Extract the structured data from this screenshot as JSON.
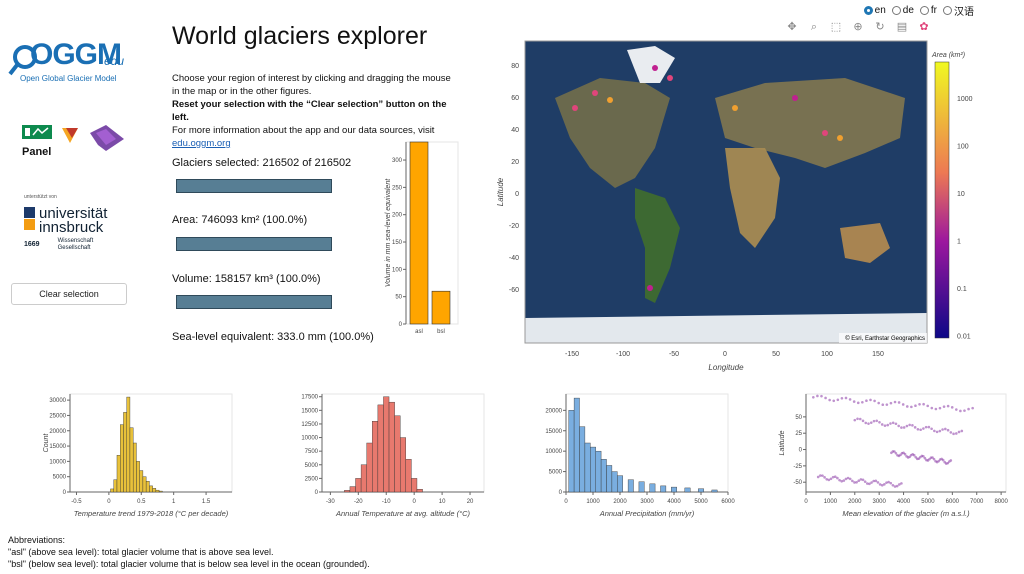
{
  "languages": [
    {
      "code": "en",
      "selected": true
    },
    {
      "code": "de",
      "selected": false
    },
    {
      "code": "fr",
      "selected": false
    },
    {
      "code": "汉语",
      "selected": false
    }
  ],
  "logos": {
    "oggm_text": "OGGM",
    "oggm_edu": "edu",
    "oggm_subtitle": "Open Global Glacier Model",
    "panel_text": "Panel",
    "uni_small": "unterstützt von",
    "uni_line1": "universität",
    "uni_line2": "innsbruck",
    "uni_year": "1669",
    "uni_wiss": "Wissenschaft",
    "uni_ges": "Gesellschaft"
  },
  "clear_button": "Clear selection",
  "title": "World glaciers explorer",
  "intro": {
    "line1": "Choose your region of interest by clicking and dragging the mouse in the map or in the other figures.",
    "line2": "Reset your selection with the “Clear selection” button on the left.",
    "line3": "For more information about the app and our data sources, visit",
    "link": "edu.oggm.org"
  },
  "stats": {
    "glaciers": "Glaciers selected: 216502 of 216502",
    "area": "Area: 746093 km² (100.0%)",
    "volume": "Volume: 158157 km³ (100.0%)",
    "sle": "Sea-level equivalent: 333.0 mm (100.0%)"
  },
  "sle_chart": {
    "type": "bar",
    "categories": [
      "asl",
      "bsl"
    ],
    "values": [
      333,
      60
    ],
    "ylabel": "Volume in mm sea-level equivalent",
    "ylim": [
      0,
      333
    ],
    "yticks": [
      0,
      50,
      100,
      150,
      200,
      250,
      300
    ],
    "color": "#ffa500"
  },
  "map": {
    "xlabel": "Longitude",
    "ylabel": "Latitude",
    "xticks": [
      "-150",
      "-100",
      "-50",
      "0",
      "50",
      "100",
      "150"
    ],
    "yticks": [
      "80",
      "60",
      "40",
      "20",
      "0",
      "-20",
      "-40",
      "-60"
    ],
    "attribution": "© Esri, Earthstar Geographics",
    "colorbar_title": "Area (km²)",
    "colorbar_ticks": [
      "1000",
      "100",
      "10",
      "1",
      "0.1",
      "0.01"
    ]
  },
  "toolbar_icons": [
    "pan-icon",
    "box-zoom-icon",
    "box-select-icon",
    "wheel-zoom-icon",
    "reset-icon",
    "hover-icon",
    "bokeh-logo-icon"
  ],
  "chart_data": [
    {
      "type": "bar",
      "title": "",
      "xlabel": "Temperature trend 1979-2018 (°C per decade)",
      "ylabel": "Count",
      "xticks": [
        "-0.5",
        "0",
        "0.5",
        "1",
        "1.5"
      ],
      "yticks": [
        "0",
        "5000",
        "10000",
        "15000",
        "20000",
        "25000",
        "30000"
      ],
      "ylim": [
        0,
        32000
      ],
      "color": "#e8c13a",
      "bins_x": [
        0.05,
        0.1,
        0.15,
        0.2,
        0.25,
        0.3,
        0.35,
        0.4,
        0.45,
        0.5,
        0.55,
        0.6,
        0.65,
        0.7,
        0.75,
        0.8
      ],
      "values": [
        1000,
        4000,
        12000,
        22000,
        26000,
        31000,
        21000,
        16000,
        10000,
        7000,
        5000,
        3500,
        2000,
        1200,
        600,
        300
      ]
    },
    {
      "type": "bar",
      "title": "",
      "xlabel": "Annual Temperature at avg. altitude (°C)",
      "ylabel": "",
      "xticks": [
        "-30",
        "-20",
        "-10",
        "0",
        "10",
        "20"
      ],
      "yticks": [
        "0",
        "2500",
        "5000",
        "7500",
        "10000",
        "12500",
        "15000",
        "17500"
      ],
      "ylim": [
        0,
        18000
      ],
      "color": "#e8796e",
      "bins_x": [
        -24,
        -22,
        -20,
        -18,
        -16,
        -14,
        -12,
        -10,
        -8,
        -6,
        -4,
        -2,
        0,
        2
      ],
      "values": [
        300,
        1000,
        2500,
        5000,
        9000,
        13000,
        16000,
        17500,
        16500,
        14000,
        10000,
        6000,
        2500,
        500
      ]
    },
    {
      "type": "bar",
      "title": "",
      "xlabel": "Annual Precipitation (mm/yr)",
      "ylabel": "",
      "xticks": [
        "0",
        "1000",
        "2000",
        "3000",
        "4000",
        "5000",
        "6000"
      ],
      "yticks": [
        "0",
        "5000",
        "10000",
        "15000",
        "20000"
      ],
      "ylim": [
        0,
        24000
      ],
      "color": "#7aaee0",
      "bins_x": [
        200,
        400,
        600,
        800,
        1000,
        1200,
        1400,
        1600,
        1800,
        2000,
        2400,
        2800,
        3200,
        3600,
        4000,
        4500,
        5000,
        5500
      ],
      "values": [
        20000,
        23000,
        16000,
        12000,
        11000,
        10000,
        8000,
        6500,
        5000,
        4000,
        3000,
        2500,
        2000,
        1500,
        1200,
        1000,
        800,
        500
      ]
    },
    {
      "type": "scatter",
      "title": "",
      "xlabel": "Mean elevation of the glacier (m a.s.l.)",
      "ylabel": "Latitude",
      "xticks": [
        "0",
        "1000",
        "2000",
        "3000",
        "4000",
        "5000",
        "6000",
        "7000",
        "8000"
      ],
      "yticks": [
        "50",
        "25",
        "0",
        "-25",
        "-50"
      ],
      "ylim": [
        -65,
        85
      ],
      "color": "#8a3aa6"
    }
  ],
  "abbreviations": {
    "title": "Abbreviations:",
    "asl": "\"asl\" (above sea level): total glacier volume that is above sea level.",
    "bsl": "\"bsl\" (below sea level): total glacier volume that is below sea level in the ocean (grounded)."
  }
}
